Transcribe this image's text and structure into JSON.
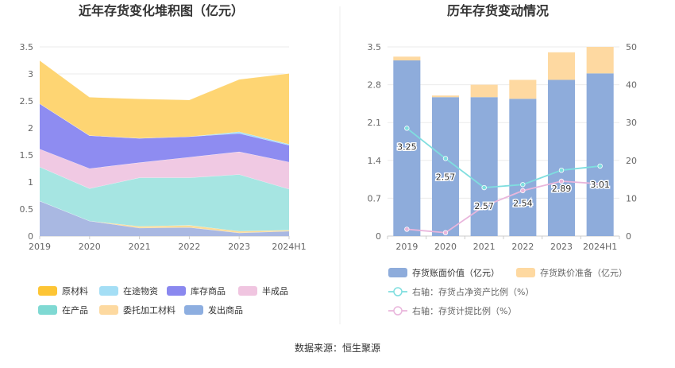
{
  "source_label": "数据来源：恒生聚源",
  "chart_data": [
    {
      "type": "area",
      "stacked": true,
      "title": "近年存货变化堆积图（亿元）",
      "categories": [
        "2019",
        "2020",
        "2021",
        "2022",
        "2023",
        "2024H1"
      ],
      "ylim": [
        0,
        3.5
      ],
      "yticks": [
        "0",
        "0.5",
        "1",
        "1.5",
        "2",
        "2.5",
        "3",
        "3.5"
      ],
      "grid": true,
      "legend_position": "bottom",
      "series": [
        {
          "name": "发出商品",
          "color": "#a9b8e2",
          "values": [
            0.65,
            0.28,
            0.15,
            0.16,
            0.06,
            0.09
          ]
        },
        {
          "name": "委托加工材料",
          "color": "#fddc97",
          "values": [
            0.0,
            0.0,
            0.03,
            0.04,
            0.03,
            0.02
          ]
        },
        {
          "name": "在产品",
          "color": "#a6e5e2",
          "values": [
            0.63,
            0.6,
            0.9,
            0.88,
            1.05,
            0.76
          ]
        },
        {
          "name": "半成品",
          "color": "#f0c9e3",
          "values": [
            0.33,
            0.37,
            0.28,
            0.38,
            0.42,
            0.5
          ]
        },
        {
          "name": "库存商品",
          "color": "#8e8cf1",
          "values": [
            0.84,
            0.61,
            0.45,
            0.38,
            0.34,
            0.31
          ]
        },
        {
          "name": "在途物资",
          "color": "#a4def5",
          "values": [
            0.0,
            0.0,
            0.0,
            0.0,
            0.03,
            0.02
          ]
        },
        {
          "name": "原材料",
          "color": "#fed573",
          "values": [
            0.8,
            0.71,
            0.73,
            0.68,
            0.97,
            1.31
          ]
        }
      ],
      "legend_order": [
        "原材料",
        "在途物资",
        "库存商品",
        "半成品",
        "在产品",
        "委托加工材料",
        "发出商品"
      ],
      "legend_swatch_colors": {
        "原材料": "#fdc535",
        "在途物资": "#a4def5",
        "库存商品": "#8a88ef",
        "半成品": "#f0c5e0",
        "在产品": "#7fd9d3",
        "委托加工材料": "#fdd9a0",
        "发出商品": "#8daee0"
      }
    },
    {
      "type": "bar",
      "title": "历年存货变动情况",
      "categories": [
        "2019",
        "2020",
        "2021",
        "2022",
        "2023",
        "2024H1"
      ],
      "ylim": [
        0,
        3.5
      ],
      "yticks_left": [
        "0",
        "0.7",
        "1.4",
        "2.1",
        "2.8",
        "3.5"
      ],
      "ylim_right": [
        0,
        50
      ],
      "yticks_right": [
        "0",
        "10",
        "20",
        "30",
        "40",
        "50"
      ],
      "grid": true,
      "legend_position": "bottom",
      "series": [
        {
          "name": "存货账面价值（亿元）",
          "type": "bar",
          "stack": "total",
          "color": "#8eacdb",
          "values": [
            3.25,
            2.57,
            2.57,
            2.54,
            2.89,
            3.01
          ]
        },
        {
          "name": "存货跌价准备（亿元）",
          "type": "bar",
          "stack": "total",
          "color": "#fed9a1",
          "values": [
            0.07,
            0.03,
            0.23,
            0.35,
            0.51,
            0.49
          ]
        },
        {
          "name": "右轴：存货占净资产比例（%）",
          "type": "line",
          "axis": "right",
          "color": "#7fdedf",
          "values": [
            28.5,
            20.5,
            12.8,
            13.6,
            17.4,
            18.5
          ]
        },
        {
          "name": "右轴：存货计提比例（%）",
          "type": "line",
          "axis": "right",
          "color": "#e9b6dc",
          "values": [
            1.8,
            0.9,
            7.9,
            12.0,
            14.5,
            13.8
          ]
        }
      ],
      "data_labels": [
        "3.25",
        "2.57",
        "2.57",
        "2.54",
        "2.89",
        "3.01"
      ]
    }
  ]
}
